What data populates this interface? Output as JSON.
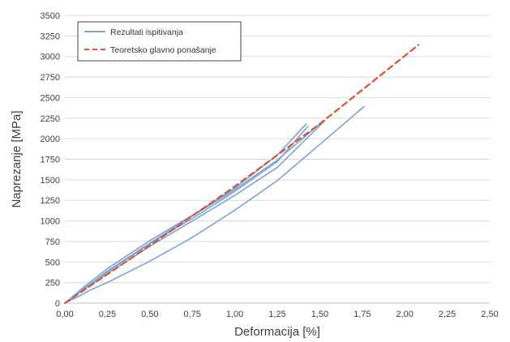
{
  "chart_data": {
    "type": "line",
    "title": "",
    "xlabel": "Deformacija [%]",
    "ylabel": "Naprezanje [MPa]",
    "xlim": [
      0,
      2.5
    ],
    "ylim": [
      0,
      3500
    ],
    "x_ticks": [
      0,
      0.25,
      0.5,
      0.75,
      1.0,
      1.25,
      1.5,
      1.75,
      2.0,
      2.25,
      2.5
    ],
    "x_tick_labels": [
      "0,00",
      "0,25",
      "0,50",
      "0,75",
      "1,00",
      "1,25",
      "1,50",
      "1,75",
      "2,00",
      "2,25",
      "2,50"
    ],
    "y_ticks": [
      0,
      250,
      500,
      750,
      1000,
      1250,
      1500,
      1750,
      2000,
      2250,
      2500,
      2750,
      3000,
      3250,
      3500
    ],
    "y_tick_labels": [
      "0",
      "250",
      "500",
      "750",
      "1000",
      "1250",
      "1500",
      "1750",
      "2000",
      "2250",
      "2500",
      "2750",
      "3000",
      "3250",
      "3500"
    ],
    "grid": "horizontal",
    "legend_position": "top-left",
    "series": [
      {
        "name": "Rezultati ispitivanja",
        "style": "solid",
        "color": "#7ba3d6",
        "lines": [
          {
            "x": [
              0,
              0.1,
              0.25,
              0.5,
              0.75,
              1.0,
              1.25,
              1.53
            ],
            "y": [
              0,
              150,
              360,
              690,
              1000,
              1310,
              1650,
              2220
            ]
          },
          {
            "x": [
              0,
              0.1,
              0.25,
              0.5,
              0.75,
              1.0,
              1.25,
              1.5
            ],
            "y": [
              0,
              155,
              390,
              730,
              1060,
              1380,
              1740,
              2180
            ]
          },
          {
            "x": [
              0,
              0.12,
              0.25,
              0.5,
              0.75,
              1.0,
              1.25,
              1.42
            ],
            "y": [
              0,
              210,
              420,
              760,
              1070,
              1400,
              1800,
              2180
            ]
          },
          {
            "x": [
              0,
              0.1,
              0.25,
              0.5,
              0.75,
              1.0,
              1.25,
              1.43
            ],
            "y": [
              0,
              160,
              380,
              720,
              1030,
              1360,
              1720,
              2150
            ]
          },
          {
            "x": [
              0,
              0.08,
              0.15,
              0.25,
              0.5,
              0.75,
              1.0,
              1.25,
              1.5,
              1.76
            ],
            "y": [
              0,
              80,
              160,
              250,
              510,
              800,
              1130,
              1490,
              1930,
              2390
            ]
          }
        ]
      },
      {
        "name": "Teoretsko glavno ponašanje",
        "style": "dashed",
        "color": "#e2522c",
        "lines": [
          {
            "x": [
              0,
              0.5,
              1.0,
              1.5,
              2.08
            ],
            "y": [
              0,
              700,
              1420,
              2180,
              3140
            ]
          }
        ]
      }
    ]
  }
}
